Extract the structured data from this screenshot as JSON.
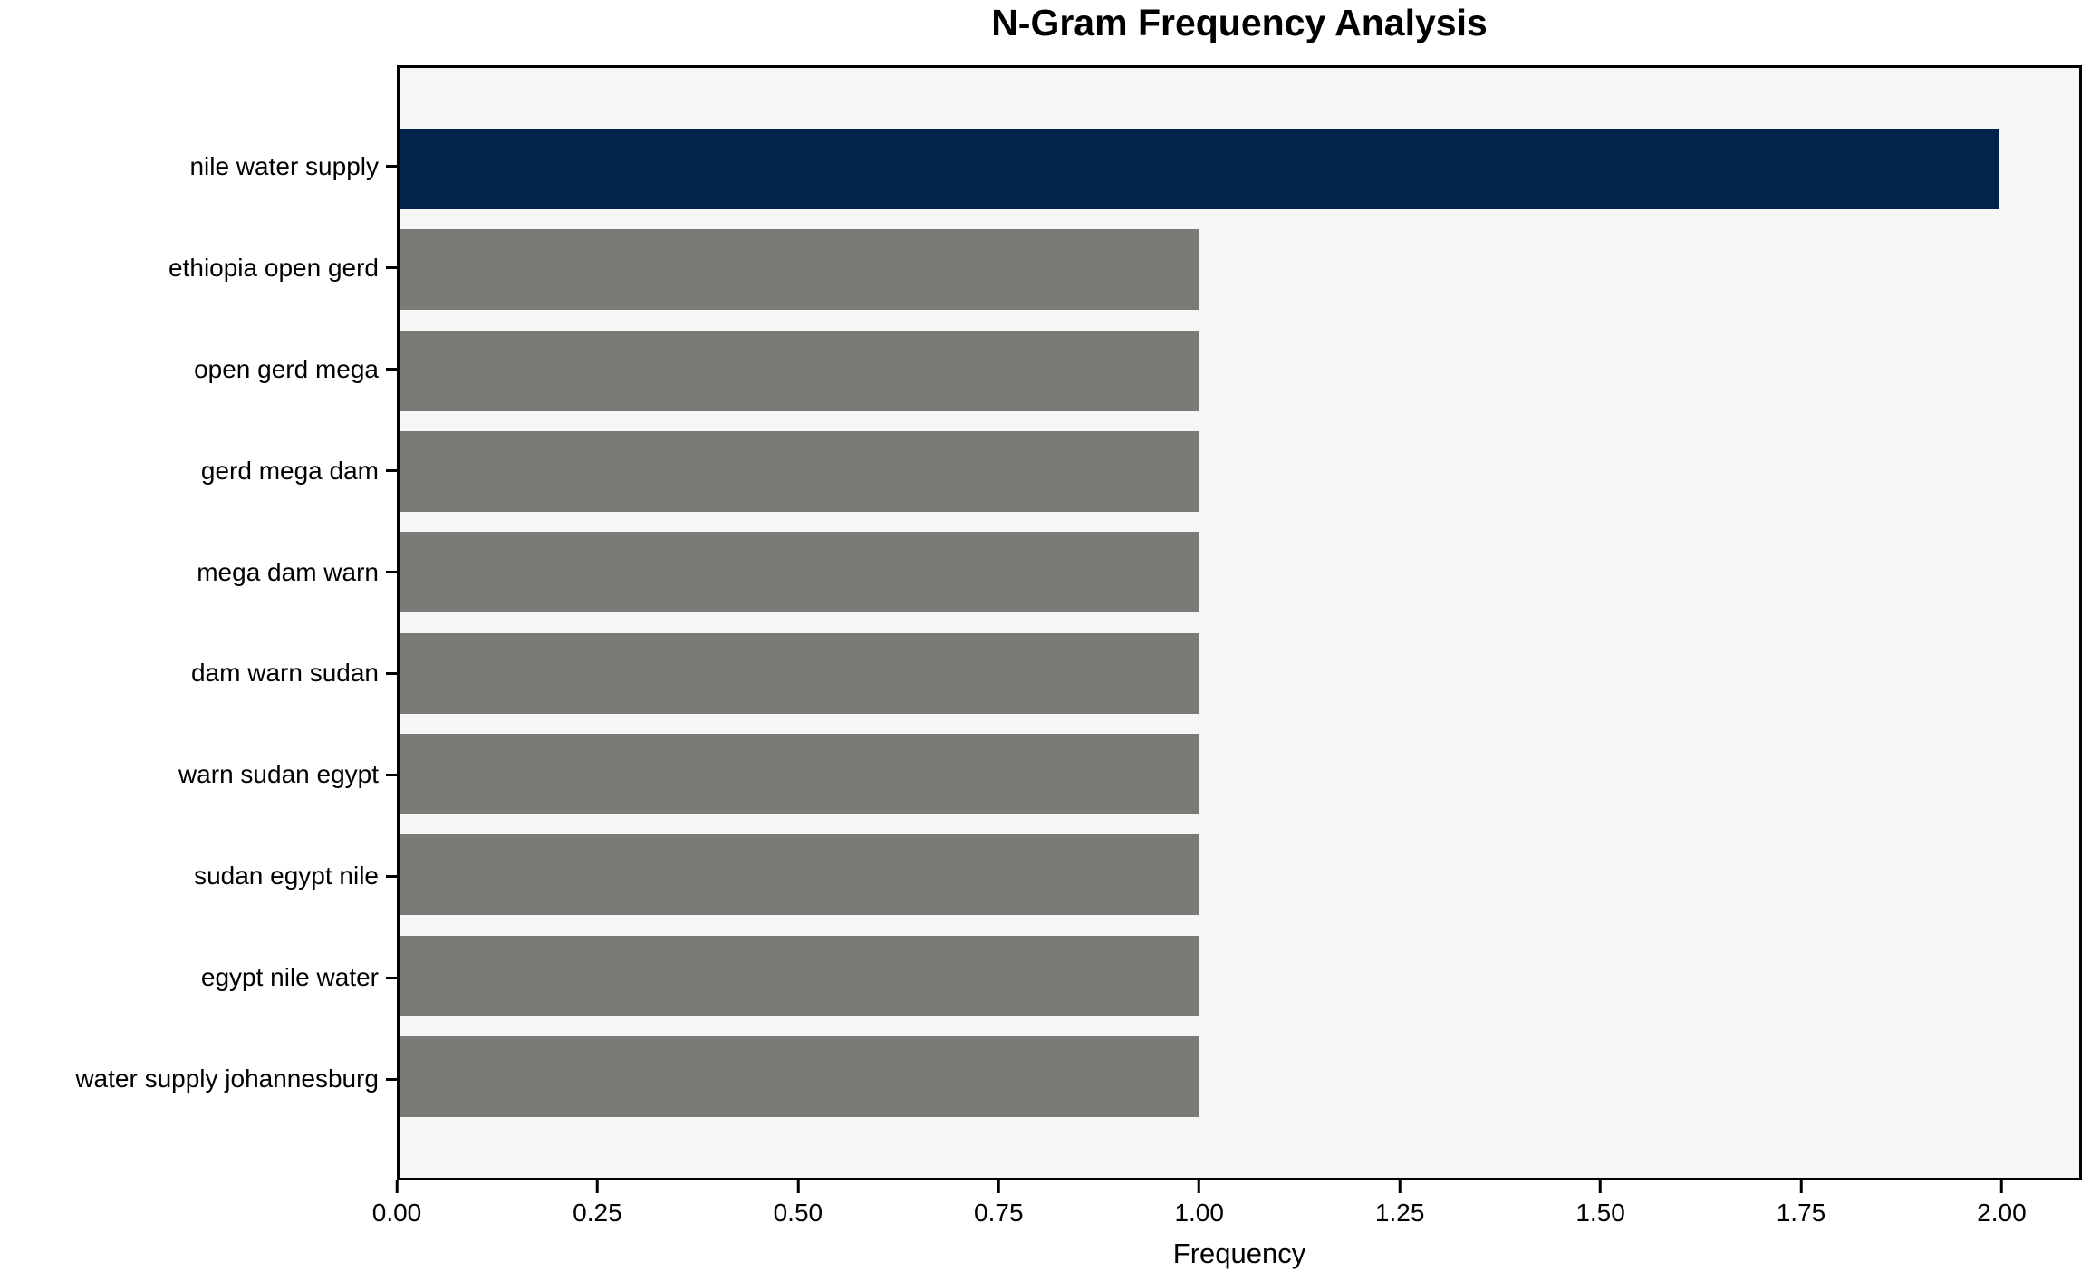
{
  "chart_data": {
    "type": "bar",
    "orientation": "horizontal",
    "title": "N-Gram Frequency Analysis",
    "xlabel": "Frequency",
    "ylabel": "",
    "categories": [
      "nile water supply",
      "ethiopia open gerd",
      "open gerd mega",
      "gerd mega dam",
      "mega dam warn",
      "dam warn sudan",
      "warn sudan egypt",
      "sudan egypt nile",
      "egypt nile water",
      "water supply johannesburg"
    ],
    "values": [
      2,
      1,
      1,
      1,
      1,
      1,
      1,
      1,
      1,
      1
    ],
    "xlim": [
      0,
      2.1
    ],
    "xtick_values": [
      0,
      0.25,
      0.5,
      0.75,
      1,
      1.25,
      1.5,
      1.75,
      2
    ],
    "xtick_labels": [
      "0.00",
      "0.25",
      "0.50",
      "0.75",
      "1.00",
      "1.25",
      "1.50",
      "1.75",
      "2.00"
    ],
    "grid": false,
    "legend": null,
    "highlight_index": 0,
    "colors": {
      "highlight_bar": "#02234c",
      "default_bar": "#7b7a77",
      "plot_background": "#f6f6f6",
      "figure_background": "#ffffff",
      "spine": "#000000",
      "text": "#000000"
    }
  }
}
